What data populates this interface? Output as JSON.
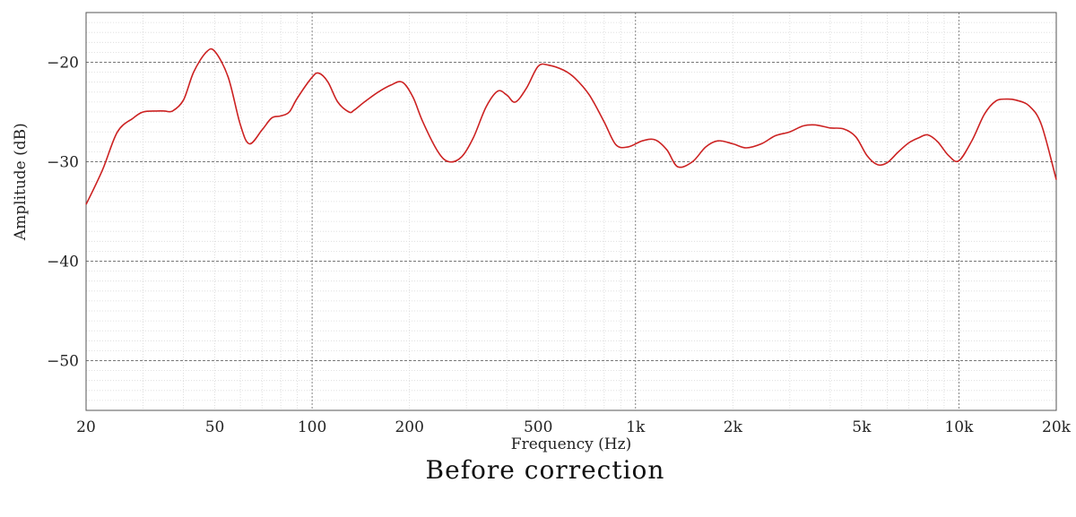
{
  "chart_data": {
    "type": "line",
    "title": "Before correction",
    "xlabel": "Frequency (Hz)",
    "ylabel": "Amplitude (dB)",
    "x_scale": "log",
    "xlim": [
      20,
      20000
    ],
    "ylim": [
      -55,
      -15
    ],
    "x_ticks": [
      {
        "value": 20,
        "label": "20"
      },
      {
        "value": 50,
        "label": "50"
      },
      {
        "value": 100,
        "label": "100"
      },
      {
        "value": 200,
        "label": "200"
      },
      {
        "value": 500,
        "label": "500"
      },
      {
        "value": 1000,
        "label": "1k"
      },
      {
        "value": 2000,
        "label": "2k"
      },
      {
        "value": 5000,
        "label": "5k"
      },
      {
        "value": 10000,
        "label": "10k"
      },
      {
        "value": 20000,
        "label": "20k"
      }
    ],
    "y_ticks": [
      {
        "value": -20,
        "label": "−20"
      },
      {
        "value": -30,
        "label": "−30"
      },
      {
        "value": -40,
        "label": "−40"
      },
      {
        "value": -50,
        "label": "−50"
      }
    ],
    "grid": true,
    "line_color": "#cc2222",
    "series": [
      {
        "x": [
          20,
          22.5,
          25,
          28,
          30,
          33,
          35,
          37,
          40,
          43,
          47,
          50,
          55,
          60,
          64,
          70,
          75,
          80,
          85,
          90,
          100,
          105,
          112,
          120,
          130,
          135,
          145,
          160,
          175,
          190,
          205,
          220,
          245,
          265,
          290,
          315,
          345,
          375,
          400,
          425,
          460,
          500,
          540,
          600,
          650,
          720,
          800,
          870,
          950,
          1050,
          1150,
          1250,
          1350,
          1500,
          1650,
          1800,
          2000,
          2200,
          2450,
          2700,
          3000,
          3300,
          3600,
          4000,
          4400,
          4800,
          5200,
          5600,
          6000,
          6500,
          7000,
          7500,
          8000,
          8600,
          9300,
          10000,
          11000,
          12000,
          13000,
          14000,
          15000,
          16500,
          18000,
          20000
        ],
        "y": [
          -34.3,
          -30.8,
          -27.0,
          -25.6,
          -25.0,
          -24.9,
          -24.9,
          -24.9,
          -23.8,
          -21.0,
          -19.0,
          -18.9,
          -21.5,
          -26.3,
          -28.2,
          -26.8,
          -25.6,
          -25.4,
          -25.0,
          -23.6,
          -21.5,
          -21.1,
          -22.0,
          -24.0,
          -25.0,
          -24.8,
          -24.0,
          -23.0,
          -22.3,
          -22.0,
          -23.5,
          -26.0,
          -29.0,
          -30.0,
          -29.5,
          -27.6,
          -24.5,
          -22.9,
          -23.3,
          -24.0,
          -22.6,
          -20.4,
          -20.3,
          -20.8,
          -21.6,
          -23.3,
          -26.0,
          -28.3,
          -28.5,
          -27.9,
          -27.8,
          -28.8,
          -30.5,
          -30.0,
          -28.5,
          -27.9,
          -28.2,
          -28.6,
          -28.2,
          -27.4,
          -27.0,
          -26.4,
          -26.3,
          -26.6,
          -26.7,
          -27.5,
          -29.4,
          -30.3,
          -30.1,
          -29.0,
          -28.1,
          -27.6,
          -27.3,
          -28.0,
          -29.4,
          -29.9,
          -27.8,
          -25.2,
          -23.9,
          -23.7,
          -23.8,
          -24.4,
          -26.3,
          -31.8
        ]
      }
    ]
  }
}
